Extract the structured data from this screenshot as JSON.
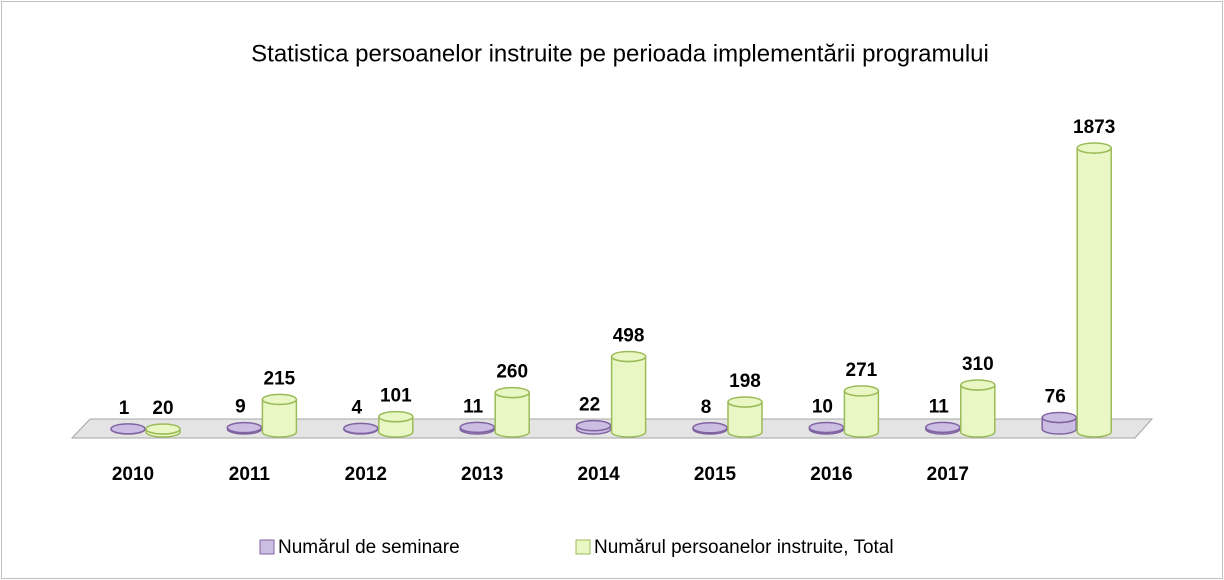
{
  "chart_data": {
    "type": "bar3d",
    "title": "Statistica persoanelor instruite pe perioada implementării programului",
    "categories": [
      "2010",
      "2011",
      "2012",
      "2013",
      "2014",
      "2015",
      "2016",
      "2017",
      null
    ],
    "series": [
      {
        "name": "Numărul de seminare",
        "color": "#ccbde3",
        "values": [
          1,
          9,
          4,
          11,
          22,
          8,
          10,
          11,
          76
        ]
      },
      {
        "name": "Numărul persoanelor instruite, Total",
        "color": "#e8f7c4",
        "values": [
          20,
          215,
          101,
          260,
          498,
          198,
          271,
          310,
          1873
        ]
      }
    ],
    "legend": "bottom"
  }
}
